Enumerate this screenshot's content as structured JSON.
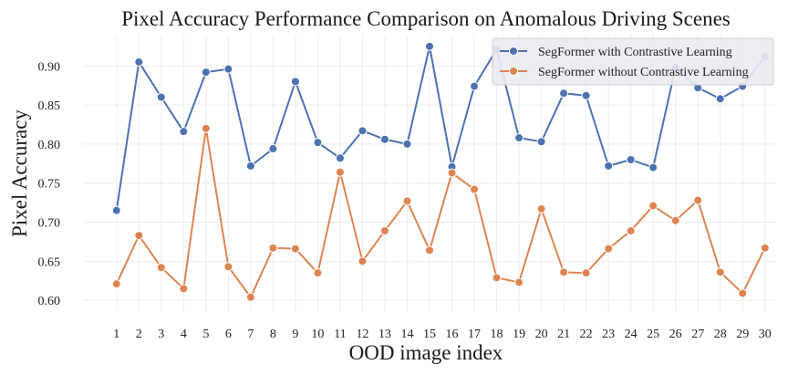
{
  "chart_data": {
    "type": "line",
    "title": "Pixel Accuracy Performance Comparison on Anomalous Driving Scenes",
    "xlabel": "OOD image index",
    "ylabel": "Pixel Accuracy",
    "x": [
      1,
      2,
      3,
      4,
      5,
      6,
      7,
      8,
      9,
      10,
      11,
      12,
      13,
      14,
      15,
      16,
      17,
      18,
      19,
      20,
      21,
      22,
      23,
      24,
      25,
      26,
      27,
      28,
      29,
      30
    ],
    "xticks": [
      "1",
      "2",
      "3",
      "4",
      "5",
      "6",
      "7",
      "8",
      "9",
      "10",
      "11",
      "12",
      "13",
      "14",
      "15",
      "16",
      "17",
      "18",
      "19",
      "20",
      "21",
      "22",
      "23",
      "24",
      "25",
      "26",
      "27",
      "28",
      "29",
      "30"
    ],
    "yticks": [
      "0.60",
      "0.65",
      "0.70",
      "0.75",
      "0.80",
      "0.85",
      "0.90"
    ],
    "ytick_values": [
      0.6,
      0.65,
      0.7,
      0.75,
      0.8,
      0.85,
      0.9
    ],
    "xlim": [
      -0.5,
      30.5
    ],
    "ylim": [
      0.585,
      0.94
    ],
    "grid": true,
    "legend_position": "top-right",
    "series": [
      {
        "name": "SegFormer with Contrastive Learning",
        "color": "#4C72B0",
        "values": [
          0.715,
          0.905,
          0.86,
          0.816,
          0.892,
          0.896,
          0.772,
          0.794,
          0.88,
          0.802,
          0.782,
          0.817,
          0.806,
          0.8,
          0.925,
          0.771,
          0.874,
          0.921,
          0.808,
          0.803,
          0.865,
          0.862,
          0.772,
          0.78,
          0.77,
          0.898,
          0.872,
          0.858,
          0.874,
          0.912
        ]
      },
      {
        "name": "SegFormer without Contrastive Learning",
        "color": "#DD8452",
        "values": [
          0.621,
          0.683,
          0.642,
          0.615,
          0.82,
          0.643,
          0.604,
          0.667,
          0.666,
          0.635,
          0.764,
          0.65,
          0.689,
          0.727,
          0.664,
          0.763,
          0.742,
          0.629,
          0.623,
          0.717,
          0.636,
          0.635,
          0.666,
          0.689,
          0.721,
          0.702,
          0.728,
          0.636,
          0.609,
          0.667
        ]
      }
    ]
  }
}
